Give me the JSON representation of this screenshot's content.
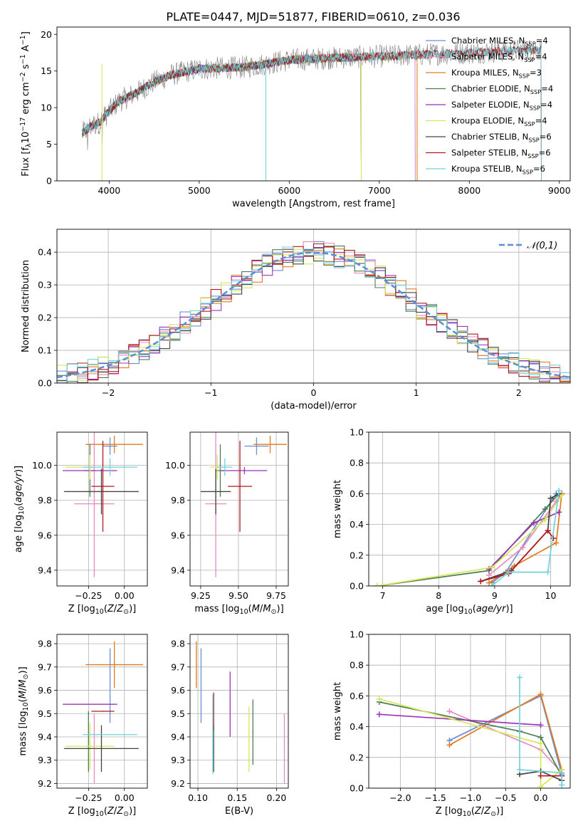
{
  "colors": {
    "Chabrier MILES": "#6b8dd6",
    "Salpeter MILES": "#e88ac0",
    "Kroupa MILES": "#e07a1f",
    "Chabrier ELODIE": "#4e7d55",
    "Salpeter ELODIE": "#9a34b8",
    "Kroupa ELODIE": "#d4e85a",
    "Chabrier STELIB": "#444444",
    "Salpeter STELIB": "#b3181c",
    "Kroupa STELIB": "#72d2dc"
  },
  "models": [
    "Chabrier MILES",
    "Salpeter MILES",
    "Kroupa MILES",
    "Chabrier ELODIE",
    "Salpeter ELODIE",
    "Kroupa ELODIE",
    "Chabrier STELIB",
    "Salpeter STELIB",
    "Kroupa STELIB"
  ],
  "chart_data": [
    {
      "id": "spectrum",
      "type": "line",
      "title": "PLATE=0447, MJD=51877, FIBERID=0610, z=0.036",
      "xlabel": "wavelength [Angstrom, rest frame]",
      "ylabel": "Flux [f_λ10^-17 erg cm^-2 s^-1 A^-1]",
      "xlim": [
        3420,
        9120
      ],
      "ylim": [
        0,
        21
      ],
      "xticks": [
        4000,
        5000,
        6000,
        7000,
        8000,
        9000
      ],
      "yticks": [
        0,
        5,
        10,
        15,
        20
      ],
      "grid": false,
      "legend_position": "top-right",
      "legend": [
        {
          "base": "Chabrier MILES, N",
          "sub": "SSP",
          "tail": "=4"
        },
        {
          "base": "Salpeter MILES, N",
          "sub": "SSP",
          "tail": "=4"
        },
        {
          "base": "Kroupa MILES, N",
          "sub": "SSP",
          "tail": "=3"
        },
        {
          "base": "Chabrier ELODIE, N",
          "sub": "SSP",
          "tail": "=4"
        },
        {
          "base": "Salpeter ELODIE, N",
          "sub": "SSP",
          "tail": "=4"
        },
        {
          "base": "Kroupa ELODIE, N",
          "sub": "SSP",
          "tail": "=4"
        },
        {
          "base": "Chabrier STELIB, N",
          "sub": "SSP",
          "tail": "=6"
        },
        {
          "base": "Salpeter STELIB, N",
          "sub": "SSP",
          "tail": "=6"
        },
        {
          "base": "Kroupa STELIB, N",
          "sub": "SSP",
          "tail": "=6"
        }
      ],
      "observed_envelope": {
        "wavelength": [
          3700,
          3800,
          3900,
          4000,
          4100,
          4300,
          4500,
          4700,
          5000,
          5500,
          6000,
          6500,
          7000,
          7400,
          8000,
          8500,
          8800
        ],
        "flux": [
          6.5,
          7.5,
          8.0,
          9.5,
          10.8,
          12.0,
          13.5,
          14.5,
          15.3,
          15.5,
          16.5,
          16.8,
          17.0,
          17.2,
          17.5,
          17.8,
          17.9
        ]
      },
      "model_extents": [
        {
          "model": "Chabrier MILES",
          "xmax": 7400
        },
        {
          "model": "Salpeter MILES",
          "xmax": 7400
        },
        {
          "model": "Kroupa MILES",
          "xmax": 7420
        },
        {
          "model": "Kroupa ELODIE",
          "xmax": 6800
        },
        {
          "model": "Salpeter ELODIE",
          "xmax": 6800
        },
        {
          "model": "Chabrier ELODIE",
          "xmax": 6800
        },
        {
          "model": "Chabrier STELIB",
          "xmax": 8800
        },
        {
          "model": "Salpeter STELIB",
          "xmax": 8800
        },
        {
          "model": "Kroupa STELIB",
          "xmax": 8800
        }
      ]
    },
    {
      "id": "histogram",
      "type": "bar",
      "xlabel": "(data-model)/error",
      "ylabel": "Normed distribution",
      "xlim": [
        -2.5,
        2.5
      ],
      "ylim": [
        0,
        0.47
      ],
      "xticks": [
        -2,
        -1,
        0,
        1,
        2
      ],
      "xticklabels": [
        "−2",
        "−1",
        "0",
        "1",
        "2"
      ],
      "yticks": [
        0.0,
        0.1,
        0.2,
        0.3,
        0.4
      ],
      "yticklabels": [
        "0.0",
        "0.1",
        "0.2",
        "0.3",
        "0.4"
      ],
      "grid": true,
      "legend_position": "top-right",
      "legend_label": "𝒩(0,1)",
      "bin_width": 0.1,
      "note": "step histograms of residuals for each of the 9 models, approximately standard normal"
    },
    {
      "id": "age_vs_Z",
      "type": "scatter",
      "xlabel": "Z [log10(Z/Z⊙)]",
      "ylabel": "age  [log10(age/yr)]",
      "xlim": [
        -0.47,
        0.16
      ],
      "ylim": [
        9.31,
        10.19
      ],
      "xticks": [
        -0.25,
        0.0
      ],
      "xticklabels": [
        "−0.25",
        "0.00"
      ],
      "yticks": [
        9.4,
        9.6,
        9.8,
        10.0
      ],
      "yticklabels": [
        "9.4",
        "9.6",
        "9.8",
        "10.0"
      ],
      "grid": true,
      "points": [
        {
          "model": "Chabrier MILES",
          "x": -0.1,
          "xerr": 0.05,
          "y": 10.11,
          "yerr": 0.05
        },
        {
          "model": "Salpeter MILES",
          "x": -0.21,
          "xerr": 0.14,
          "y": 9.78,
          "yerr": 0.42
        },
        {
          "model": "Kroupa MILES",
          "x": -0.07,
          "xerr": 0.2,
          "y": 10.12,
          "yerr": 0.05
        },
        {
          "model": "Chabrier ELODIE",
          "x": -0.24,
          "xerr": 0.04,
          "y": 9.97,
          "yerr": 0.15
        },
        {
          "model": "Salpeter ELODIE",
          "x": -0.24,
          "xerr": 0.19,
          "y": 9.97,
          "yerr": 0.02
        },
        {
          "model": "Kroupa ELODIE",
          "x": -0.24,
          "xerr": 0.17,
          "y": 9.99,
          "yerr": 0.07
        },
        {
          "model": "Chabrier STELIB",
          "x": -0.16,
          "xerr": 0.26,
          "y": 9.85,
          "yerr": 0.13
        },
        {
          "model": "Salpeter STELIB",
          "x": -0.15,
          "xerr": 0.08,
          "y": 9.88,
          "yerr": 0.26
        },
        {
          "model": "Kroupa STELIB",
          "x": -0.1,
          "xerr": 0.19,
          "y": 9.99,
          "yerr": 0.05
        }
      ]
    },
    {
      "id": "age_vs_mass",
      "type": "scatter",
      "xlabel": "mass [log10(M/M⊙)]",
      "ylabel": "",
      "xlim": [
        9.18,
        9.83
      ],
      "ylim": [
        9.31,
        10.19
      ],
      "xticks": [
        9.25,
        9.5,
        9.75
      ],
      "xticklabels": [
        "9.25",
        "9.50",
        "9.75"
      ],
      "yticks": [
        9.4,
        9.6,
        9.8,
        10.0
      ],
      "yticklabels": [
        "9.4",
        "9.6",
        "9.8",
        "10.0"
      ],
      "grid": true,
      "points": [
        {
          "model": "Chabrier MILES",
          "x": 9.62,
          "xerr": 0.08,
          "y": 10.11,
          "yerr": 0.05
        },
        {
          "model": "Salpeter MILES",
          "x": 9.35,
          "xerr": 0.07,
          "y": 9.78,
          "yerr": 0.42
        },
        {
          "model": "Kroupa MILES",
          "x": 9.71,
          "xerr": 0.11,
          "y": 10.12,
          "yerr": 0.05
        },
        {
          "model": "Chabrier ELODIE",
          "x": 9.38,
          "xerr": 0.03,
          "y": 9.97,
          "yerr": 0.15
        },
        {
          "model": "Salpeter ELODIE",
          "x": 9.54,
          "xerr": 0.15,
          "y": 9.97,
          "yerr": 0.02
        },
        {
          "model": "Kroupa ELODIE",
          "x": 9.36,
          "xerr": 0.05,
          "y": 9.99,
          "yerr": 0.07
        },
        {
          "model": "Chabrier STELIB",
          "x": 9.35,
          "xerr": 0.1,
          "y": 9.85,
          "yerr": 0.13
        },
        {
          "model": "Salpeter STELIB",
          "x": 9.51,
          "xerr": 0.08,
          "y": 9.88,
          "yerr": 0.26
        },
        {
          "model": "Kroupa STELIB",
          "x": 9.41,
          "xerr": 0.05,
          "y": 9.99,
          "yerr": 0.05
        }
      ]
    },
    {
      "id": "massweight_vs_age",
      "type": "line",
      "xlabel": "age  [log10(age/yr)]",
      "ylabel": "mass weight",
      "xlim": [
        6.75,
        10.35
      ],
      "ylim": [
        0,
        1
      ],
      "xticks": [
        7,
        8,
        9,
        10
      ],
      "xticklabels": [
        "7",
        "8",
        "9",
        "10"
      ],
      "yticks": [
        0.0,
        0.2,
        0.4,
        0.6,
        0.8,
        1.0
      ],
      "yticklabels": [
        "0.0",
        "0.2",
        "0.4",
        "0.6",
        "0.8",
        "1.0"
      ],
      "grid": true,
      "series": [
        {
          "model": "Chabrier MILES",
          "x": [
            8.95,
            9.2,
            10.1,
            10.2
          ],
          "y": [
            0.02,
            0.09,
            0.6,
            0.6
          ]
        },
        {
          "model": "Salpeter MILES",
          "x": [
            8.9,
            9.5,
            10.1,
            10.2
          ],
          "y": [
            0.07,
            0.25,
            0.55,
            0.6
          ]
        },
        {
          "model": "Kroupa MILES",
          "x": [
            8.9,
            9.35,
            10.1,
            10.2
          ],
          "y": [
            0.02,
            0.13,
            0.28,
            0.6
          ]
        },
        {
          "model": "Chabrier ELODIE",
          "x": [
            6.9,
            8.9,
            9.9,
            10.15
          ],
          "y": [
            0.0,
            0.1,
            0.5,
            0.6
          ]
        },
        {
          "model": "Salpeter ELODIE",
          "x": [
            8.9,
            9.7,
            10.15
          ],
          "y": [
            0.11,
            0.41,
            0.48
          ]
        },
        {
          "model": "Kroupa ELODIE",
          "x": [
            6.9,
            8.95,
            9.9,
            10.2
          ],
          "y": [
            0.0,
            0.12,
            0.43,
            0.59
          ]
        },
        {
          "model": "Chabrier STELIB",
          "x": [
            8.75,
            9.3,
            9.95,
            10.0,
            10.15
          ],
          "y": [
            0.03,
            0.1,
            0.36,
            0.57,
            0.6
          ]
        },
        {
          "model": "Salpeter STELIB",
          "x": [
            8.75,
            9.25,
            9.95,
            10.05
          ],
          "y": [
            0.03,
            0.08,
            0.36,
            0.31
          ]
        },
        {
          "model": "Kroupa STELIB",
          "x": [
            8.95,
            9.25,
            9.95,
            10.15
          ],
          "y": [
            0.0,
            0.09,
            0.09,
            0.62
          ]
        }
      ]
    },
    {
      "id": "mass_vs_Z",
      "type": "scatter",
      "xlabel": "Z [log10(Z/Z⊙)]",
      "ylabel": "mass [log10(M/M⊙)]",
      "xlim": [
        -0.47,
        0.16
      ],
      "ylim": [
        9.18,
        9.84
      ],
      "xticks": [
        -0.25,
        0.0
      ],
      "xticklabels": [
        "−0.25",
        "0.00"
      ],
      "yticks": [
        9.2,
        9.3,
        9.4,
        9.5,
        9.6,
        9.7,
        9.8
      ],
      "yticklabels": [
        "9.2",
        "9.3",
        "9.4",
        "9.5",
        "9.6",
        "9.7",
        "9.8"
      ],
      "grid": true,
      "points": [
        {
          "model": "Chabrier MILES",
          "x": -0.1,
          "xerr": 0.0,
          "y": 9.62,
          "yerr": 0.16
        },
        {
          "model": "Salpeter MILES",
          "x": -0.21,
          "xerr": 0.0,
          "y": 9.35,
          "yerr": 0.15
        },
        {
          "model": "Kroupa MILES",
          "x": -0.07,
          "xerr": 0.2,
          "y": 9.71,
          "yerr": 0.1
        },
        {
          "model": "Chabrier ELODIE",
          "x": -0.25,
          "xerr": 0.0,
          "y": 9.38,
          "yerr": 0.13
        },
        {
          "model": "Salpeter ELODIE",
          "x": -0.24,
          "xerr": 0.19,
          "y": 9.54,
          "yerr": 0.0
        },
        {
          "model": "Kroupa ELODIE",
          "x": -0.24,
          "xerr": 0.17,
          "y": 9.36,
          "yerr": 0.1
        },
        {
          "model": "Chabrier STELIB",
          "x": -0.16,
          "xerr": 0.26,
          "y": 9.35,
          "yerr": 0.1
        },
        {
          "model": "Salpeter STELIB",
          "x": -0.15,
          "xerr": 0.08,
          "y": 9.51,
          "yerr": 0.0
        },
        {
          "model": "Kroupa STELIB",
          "x": -0.1,
          "xerr": 0.19,
          "y": 9.41,
          "yerr": 0.0
        }
      ]
    },
    {
      "id": "mass_vs_ebv",
      "type": "scatter",
      "xlabel": "E(B-V)",
      "ylabel": "",
      "xlim": [
        0.09,
        0.215
      ],
      "ylim": [
        9.18,
        9.84
      ],
      "xticks": [
        0.1,
        0.15,
        0.2
      ],
      "xticklabels": [
        "0.10",
        "0.15",
        "0.20"
      ],
      "yticks": [
        9.2,
        9.3,
        9.4,
        9.5,
        9.6,
        9.7,
        9.8
      ],
      "yticklabels": [
        "9.2",
        "9.3",
        "9.4",
        "9.5",
        "9.6",
        "9.7",
        "9.8"
      ],
      "grid": true,
      "points": [
        {
          "model": "Chabrier MILES",
          "x": 0.104,
          "xerr": 0.0,
          "y": 9.62,
          "yerr": 0.16
        },
        {
          "model": "Salpeter MILES",
          "x": 0.21,
          "xerr": 0.0,
          "y": 9.35,
          "yerr": 0.15
        },
        {
          "model": "Kroupa MILES",
          "x": 0.098,
          "xerr": 0.0,
          "y": 9.71,
          "yerr": 0.1
        },
        {
          "model": "Chabrier ELODIE",
          "x": 0.17,
          "xerr": 0.0,
          "y": 9.42,
          "yerr": 0.14
        },
        {
          "model": "Salpeter ELODIE",
          "x": 0.141,
          "xerr": 0.0,
          "y": 9.54,
          "yerr": 0.14
        },
        {
          "model": "Kroupa ELODIE",
          "x": 0.165,
          "xerr": 0.0,
          "y": 9.39,
          "yerr": 0.14
        },
        {
          "model": "Chabrier STELIB",
          "x": 0.12,
          "xerr": 0.0,
          "y": 9.35,
          "yerr": 0.1
        },
        {
          "model": "Salpeter STELIB",
          "x": 0.12,
          "xerr": 0.0,
          "y": 9.51,
          "yerr": 0.08
        },
        {
          "model": "Kroupa STELIB",
          "x": 0.119,
          "xerr": 0.0,
          "y": 9.41,
          "yerr": 0.17
        }
      ]
    },
    {
      "id": "massweight_vs_Z",
      "type": "line",
      "xlabel": "Z [log10(Z/Z⊙)]",
      "ylabel": "mass weight",
      "xlim": [
        -2.45,
        0.42
      ],
      "ylim": [
        0,
        1
      ],
      "xticks": [
        -2.0,
        -1.5,
        -1.0,
        -0.5,
        0.0
      ],
      "xticklabels": [
        "−2.0",
        "−1.5",
        "−1.0",
        "−0.5",
        "0.0"
      ],
      "yticks": [
        0.0,
        0.2,
        0.4,
        0.6,
        0.8,
        1.0
      ],
      "yticklabels": [
        "0.0",
        "0.2",
        "0.4",
        "0.6",
        "0.8",
        "1.0"
      ],
      "grid": true,
      "series": [
        {
          "model": "Chabrier MILES",
          "x": [
            -1.3,
            0.0,
            0.3
          ],
          "y": [
            0.31,
            0.6,
            0.09
          ]
        },
        {
          "model": "Salpeter MILES",
          "x": [
            -1.3,
            0.0,
            0.3
          ],
          "y": [
            0.5,
            0.25,
            0.1
          ]
        },
        {
          "model": "Kroupa MILES",
          "x": [
            -1.3,
            0.0,
            0.3
          ],
          "y": [
            0.28,
            0.61,
            0.12
          ]
        },
        {
          "model": "Chabrier ELODIE",
          "x": [
            -2.3,
            -0.3,
            0.0,
            0.3
          ],
          "y": [
            0.56,
            0.37,
            0.33,
            0.08
          ]
        },
        {
          "model": "Salpeter ELODIE",
          "x": [
            -2.3,
            0.0
          ],
          "y": [
            0.48,
            0.41
          ]
        },
        {
          "model": "Kroupa ELODIE",
          "x": [
            -2.3,
            0.0,
            0.0,
            0.3
          ],
          "y": [
            0.58,
            0.29,
            0.01,
            0.12
          ]
        },
        {
          "model": "Chabrier STELIB",
          "x": [
            -0.3,
            0.0,
            0.3
          ],
          "y": [
            0.09,
            0.11,
            0.05
          ]
        },
        {
          "model": "Salpeter STELIB",
          "x": [
            0.0,
            0.3
          ],
          "y": [
            0.08,
            0.08
          ]
        },
        {
          "model": "Kroupa STELIB",
          "x": [
            -0.3,
            -0.3,
            0.3,
            0.3
          ],
          "y": [
            0.72,
            0.12,
            0.1,
            0.02
          ]
        }
      ]
    }
  ]
}
